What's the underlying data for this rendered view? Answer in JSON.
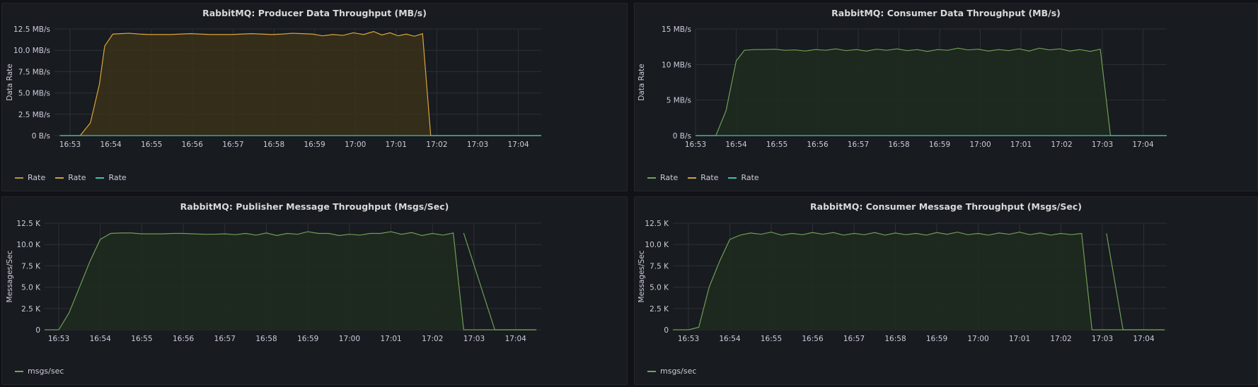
{
  "chart_data": [
    {
      "type": "area",
      "title": "RabbitMQ: Producer Data Throughput (MB/s)",
      "ylabel": "Data Rate",
      "ylim": [
        0,
        12.5
      ],
      "yticks": [
        "0 B/s",
        "2.5 MB/s",
        "5.0 MB/s",
        "7.5 MB/s",
        "10.0 MB/s",
        "12.5 MB/s"
      ],
      "xticks": [
        "16:53",
        "16:54",
        "16:55",
        "16:56",
        "16:57",
        "16:58",
        "16:59",
        "17:00",
        "17:01",
        "17:02",
        "17:03",
        "17:04"
      ],
      "legend": [
        {
          "name": "Rate",
          "color": "#b8953a"
        },
        {
          "name": "Rate",
          "color": "#d1a33b"
        },
        {
          "name": "Rate",
          "color": "#3fc1b0"
        }
      ],
      "series": [
        {
          "name": "Rate",
          "color": "#d9a63a",
          "fill": "#3a301a",
          "x": [
            -0.25,
            0.05,
            0.25,
            0.5,
            0.72,
            0.85,
            1.05,
            1.25,
            1.45,
            1.7,
            1.95,
            2.2,
            2.45,
            2.7,
            2.95,
            3.2,
            3.45,
            3.7,
            3.95,
            4.2,
            4.45,
            4.7,
            4.95,
            5.2,
            5.45,
            5.7,
            5.95,
            6.2,
            6.45,
            6.7,
            6.95,
            7.2,
            7.45,
            7.65,
            7.85,
            8.05,
            8.25,
            8.45,
            8.65,
            8.85,
            9.05,
            9.25,
            9.45,
            9.65,
            9.85,
            10.05,
            10.25,
            10.5,
            10.95,
            11.6
          ],
          "y": [
            0,
            0,
            0,
            1.5,
            6,
            10.5,
            11.9,
            11.95,
            12,
            11.9,
            11.85,
            11.85,
            11.85,
            11.9,
            11.95,
            11.9,
            11.85,
            11.85,
            11.85,
            11.9,
            11.95,
            11.9,
            11.85,
            11.9,
            12,
            11.95,
            11.9,
            11.7,
            11.85,
            11.75,
            12.05,
            11.85,
            12.2,
            11.8,
            12.05,
            11.7,
            11.9,
            11.65,
            11.95,
            0,
            0,
            0,
            0,
            0,
            0,
            0,
            0,
            0,
            0,
            0
          ]
        },
        {
          "name": "Rate",
          "color": "#3fc1b0",
          "fill": "none",
          "x": [
            -0.25,
            11.6
          ],
          "y": [
            0,
            0
          ]
        }
      ]
    },
    {
      "type": "area",
      "title": "RabbitMQ: Consumer Data Throughput (MB/s)",
      "ylabel": "Data Rate",
      "ylim": [
        0,
        15
      ],
      "yticks": [
        "0 B/s",
        "5 MB/s",
        "10 MB/s",
        "15 MB/s"
      ],
      "xticks": [
        "16:53",
        "16:54",
        "16:55",
        "16:56",
        "16:57",
        "16:58",
        "16:59",
        "17:00",
        "17:01",
        "17:02",
        "17:03",
        "17:04"
      ],
      "legend": [
        {
          "name": "Rate",
          "color": "#73a35a"
        },
        {
          "name": "Rate",
          "color": "#d1a33b"
        },
        {
          "name": "Rate",
          "color": "#3fc1b0"
        }
      ],
      "series": [
        {
          "name": "Rate",
          "color": "#6e9e58",
          "fill": "#1f2a1f",
          "x": [
            -0.25,
            0.2,
            0.5,
            0.75,
            1.0,
            1.2,
            1.45,
            1.7,
            1.95,
            2.2,
            2.45,
            2.7,
            2.95,
            3.2,
            3.45,
            3.7,
            3.95,
            4.2,
            4.45,
            4.7,
            4.95,
            5.2,
            5.45,
            5.7,
            5.95,
            6.2,
            6.45,
            6.7,
            6.95,
            7.2,
            7.45,
            7.7,
            7.95,
            8.2,
            8.45,
            8.7,
            8.95,
            9.2,
            9.45,
            9.7,
            9.95,
            10.2,
            10.45,
            10.7,
            11.25,
            11.6
          ],
          "y": [
            0,
            0,
            0,
            3.5,
            10.5,
            12,
            12.1,
            12.1,
            12.15,
            12,
            12.05,
            11.9,
            12.1,
            12,
            12.2,
            11.95,
            12.1,
            11.9,
            12.15,
            12,
            12.2,
            11.95,
            12.1,
            11.85,
            12.1,
            12,
            12.3,
            12.05,
            12.15,
            11.9,
            12.1,
            11.95,
            12.2,
            11.9,
            12.3,
            12.05,
            12.2,
            11.9,
            12.1,
            11.85,
            12.15,
            0,
            0,
            0,
            0,
            0
          ]
        },
        {
          "name": "Rate",
          "color": "#3fc1b0",
          "fill": "none",
          "x": [
            -0.25,
            11.6
          ],
          "y": [
            0,
            0
          ]
        }
      ]
    },
    {
      "type": "area",
      "title": "RabbitMQ: Publisher Message Throughput (Msgs/Sec)",
      "ylabel": "Messages/Sec",
      "ylim": [
        0,
        12.5
      ],
      "yticks": [
        "0",
        "2.5 K",
        "5.0 K",
        "7.5 K",
        "10.0 K",
        "12.5 K"
      ],
      "xticks": [
        "16:53",
        "16:54",
        "16:55",
        "16:56",
        "16:57",
        "16:58",
        "16:59",
        "17:00",
        "17:01",
        "17:02",
        "17:03",
        "17:04"
      ],
      "legend": [
        {
          "name": "msgs/sec",
          "color": "#73a35a"
        }
      ],
      "series": [
        {
          "name": "msgs/sec",
          "color": "#6e9e58",
          "fill": "#1f2a1f",
          "x": [
            -0.45,
            0,
            0.25,
            0.5,
            0.75,
            1.0,
            1.25,
            1.5,
            1.75,
            2.0,
            2.25,
            2.5,
            2.75,
            3.0,
            3.25,
            3.5,
            3.75,
            4.0,
            4.25,
            4.5,
            4.75,
            5.0,
            5.25,
            5.5,
            5.75,
            6.0,
            6.25,
            6.5,
            6.75,
            7.0,
            7.25,
            7.5,
            7.75,
            8.0,
            8.25,
            8.5,
            8.75,
            9.0,
            9.25,
            9.5,
            9.75,
            10.0,
            10.25,
            10.5,
            10.75,
            11.0,
            11.5
          ],
          "y": [
            0,
            0,
            2,
            5,
            8,
            10.6,
            11.3,
            11.35,
            11.35,
            11.25,
            11.25,
            11.25,
            11.3,
            11.3,
            11.25,
            11.2,
            11.2,
            11.25,
            11.15,
            11.3,
            11.1,
            11.35,
            11.05,
            11.3,
            11.2,
            11.5,
            11.3,
            11.3,
            11.05,
            11.2,
            11.1,
            11.3,
            11.3,
            11.5,
            11.2,
            11.4,
            11.05,
            11.3,
            11.1,
            11.35,
            0,
            0,
            0,
            0,
            0,
            0,
            0
          ]
        },
        {
          "name": "msgs/sec",
          "color": "#6e9e58",
          "fill": "none",
          "x": [
            9.75,
            10.5,
            11.5
          ],
          "y": [
            11.35,
            0,
            0
          ]
        }
      ]
    },
    {
      "type": "area",
      "title": "RabbitMQ: Consumer Message Throughput (Msgs/Sec)",
      "ylabel": "Messages/Sec",
      "ylim": [
        0,
        12.5
      ],
      "yticks": [
        "0",
        "2.5 K",
        "5.0 K",
        "7.5 K",
        "10.0 K",
        "12.5 K"
      ],
      "xticks": [
        "16:53",
        "16:54",
        "16:55",
        "16:56",
        "16:57",
        "16:58",
        "16:59",
        "17:00",
        "17:01",
        "17:02",
        "17:03",
        "17:04"
      ],
      "legend": [
        {
          "name": "msgs/sec",
          "color": "#73a35a"
        }
      ],
      "series": [
        {
          "name": "msgs/sec",
          "color": "#6e9e58",
          "fill": "#1f2a1f",
          "x": [
            -0.45,
            0,
            0.25,
            0.5,
            0.75,
            1.0,
            1.25,
            1.5,
            1.75,
            2.0,
            2.25,
            2.5,
            2.75,
            3.0,
            3.25,
            3.5,
            3.75,
            4.0,
            4.25,
            4.5,
            4.75,
            5.0,
            5.25,
            5.5,
            5.75,
            6.0,
            6.25,
            6.5,
            6.75,
            7.0,
            7.25,
            7.5,
            7.75,
            8.0,
            8.25,
            8.5,
            8.75,
            9.0,
            9.25,
            9.5,
            9.75,
            10.0,
            10.25,
            10.5,
            11.2,
            11.5
          ],
          "y": [
            0,
            0,
            0.3,
            5,
            8,
            10.6,
            11.1,
            11.35,
            11.2,
            11.45,
            11.1,
            11.3,
            11.15,
            11.4,
            11.2,
            11.4,
            11.1,
            11.3,
            11.15,
            11.4,
            11.1,
            11.35,
            11.15,
            11.3,
            11.1,
            11.4,
            11.2,
            11.45,
            11.15,
            11.3,
            11.1,
            11.35,
            11.2,
            11.45,
            11.15,
            11.35,
            11.1,
            11.3,
            11.15,
            11.3,
            0,
            0,
            0,
            0,
            0,
            0
          ]
        },
        {
          "name": "msgs/sec",
          "color": "#6e9e58",
          "fill": "none",
          "x": [
            10.1,
            10.5,
            11.0,
            11.5
          ],
          "y": [
            11.3,
            0,
            0,
            0
          ]
        }
      ]
    }
  ]
}
